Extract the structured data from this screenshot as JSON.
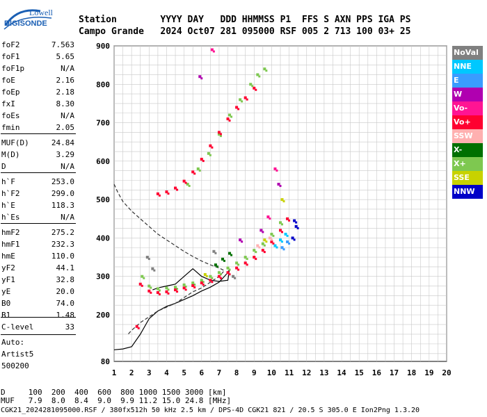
{
  "logo": {
    "line1": "Lowell",
    "line2": "DIGISONDE"
  },
  "header": {
    "line1": "Station        YYYY DAY   DDD HHMMSS P1  FFS S AXN PPS IGA PS",
    "line2": "Campo Grande   2024 Oct07 281 095000 RSF 005 2 713 100 03+ 25"
  },
  "params": [
    {
      "label": "foF2",
      "value": "7.563"
    },
    {
      "label": "foF1",
      "value": "5.65"
    },
    {
      "label": "foF1p",
      "value": "N/A"
    },
    {
      "label": "foE",
      "value": "2.16"
    },
    {
      "label": "foEp",
      "value": "2.18"
    },
    {
      "label": "fxI",
      "value": "8.30"
    },
    {
      "label": "foEs",
      "value": "N/A"
    },
    {
      "label": "fmin",
      "value": "2.05"
    },
    {
      "label": "MUF(D)",
      "value": "24.84"
    },
    {
      "label": "M(D)",
      "value": "3.29"
    },
    {
      "label": "D",
      "value": "N/A"
    },
    {
      "label": "h`F",
      "value": "253.0"
    },
    {
      "label": "h`F2",
      "value": "299.0"
    },
    {
      "label": "h`E",
      "value": "118.3"
    },
    {
      "label": "h`Es",
      "value": "N/A"
    },
    {
      "label": "hmF2",
      "value": "275.2"
    },
    {
      "label": "hmF1",
      "value": "232.3"
    },
    {
      "label": "hmE",
      "value": "110.0"
    },
    {
      "label": "yF2",
      "value": "44.1"
    },
    {
      "label": "yF1",
      "value": "32.8"
    },
    {
      "label": "yE",
      "value": "20.0"
    },
    {
      "label": "B0",
      "value": "74.0"
    },
    {
      "label": "B1",
      "value": "1.48"
    },
    {
      "label": "C-level",
      "value": "33"
    },
    {
      "label": "Auto:",
      "value": ""
    },
    {
      "label": "Artist5",
      "value": ""
    },
    {
      "label": "500200",
      "value": ""
    }
  ],
  "legend": [
    {
      "label": "NoVal",
      "color": "#808080"
    },
    {
      "label": "NNE",
      "color": "#00c8ff"
    },
    {
      "label": "E",
      "color": "#3a9cff"
    },
    {
      "label": "W",
      "color": "#b000b0"
    },
    {
      "label": "Vo-",
      "color": "#ff1493"
    },
    {
      "label": "Vo+",
      "color": "#ff0030"
    },
    {
      "label": "SSW",
      "color": "#ffb0b0"
    },
    {
      "label": "X-",
      "color": "#007000"
    },
    {
      "label": "X+",
      "color": "#7ec850"
    },
    {
      "label": "SSE",
      "color": "#c8d200"
    },
    {
      "label": "NNW",
      "color": "#0000c8"
    }
  ],
  "muf_table": {
    "line1": "D     100  200  400  600  800 1000 1500 3000 [km]",
    "line2": "MUF   7.9  8.0  8.4  9.0  9.9 11.2 15.0 24.8 [MHz]"
  },
  "footer": "CGK21_2024281095000.RSF / 380fx512h 50 kHz 2.5 km / DPS-4D CGK21 821 / 20.5 S 305.0 E Ion2Png 1.3.20",
  "chart_data": {
    "type": "scatter",
    "xlim": [
      1,
      20
    ],
    "ylim": [
      80,
      900
    ],
    "x_ticks": [
      1,
      2,
      3,
      4,
      5,
      6,
      7,
      8,
      9,
      10,
      11,
      12,
      13,
      14,
      15,
      16,
      17,
      18,
      19,
      20
    ],
    "y_ticks": [
      80,
      200,
      300,
      400,
      500,
      600,
      700,
      800,
      900
    ],
    "grid": true,
    "series": [
      {
        "name": "X+",
        "color": "#7ec850",
        "x": [
          2.6,
          3.0,
          3.5,
          4.0,
          4.5,
          5.0,
          5.5,
          6.0,
          6.5,
          7.0,
          7.5,
          8.0,
          8.5,
          9.0,
          9.5,
          10.0,
          10.5,
          5.2,
          5.8,
          6.4,
          7.0,
          7.6,
          8.2,
          8.8,
          9.2,
          9.6
        ],
        "y": [
          300,
          275,
          268,
          270,
          272,
          278,
          283,
          290,
          300,
          310,
          322,
          335,
          350,
          368,
          385,
          410,
          440,
          540,
          580,
          620,
          670,
          720,
          760,
          800,
          825,
          840
        ]
      },
      {
        "name": "Vo+",
        "color": "#ff0030",
        "x": [
          2.3,
          2.5,
          3.0,
          3.5,
          4.0,
          4.5,
          5.0,
          5.5,
          6.0,
          6.5,
          7.0,
          7.5,
          8.0,
          8.5,
          9.0,
          9.5,
          10.0,
          10.5,
          10.9,
          3.5,
          4.0,
          4.5,
          5.0,
          5.5,
          6.0,
          6.5,
          7.0,
          7.5,
          8.0,
          8.5,
          9.0
        ],
        "y": [
          170,
          280,
          262,
          258,
          260,
          265,
          270,
          276,
          283,
          290,
          300,
          310,
          322,
          335,
          350,
          368,
          390,
          420,
          450,
          515,
          520,
          530,
          548,
          572,
          605,
          640,
          675,
          710,
          740,
          765,
          790
        ]
      },
      {
        "name": "X-",
        "color": "#007000",
        "x": [
          6.8,
          7.2,
          7.6
        ],
        "y": [
          330,
          345,
          360
        ]
      },
      {
        "name": "W",
        "color": "#b000b0",
        "x": [
          5.9,
          8.2,
          9.4,
          10.4
        ],
        "y": [
          820,
          395,
          420,
          540
        ]
      },
      {
        "name": "Vo-",
        "color": "#ff1493",
        "x": [
          6.6,
          9.8,
          10.2
        ],
        "y": [
          890,
          455,
          580
        ]
      },
      {
        "name": "NNE",
        "color": "#00c8ff",
        "x": [
          10.2,
          10.5,
          10.8
        ],
        "y": [
          380,
          395,
          410
        ]
      },
      {
        "name": "E",
        "color": "#3a9cff",
        "x": [
          10.6,
          10.9
        ],
        "y": [
          375,
          390
        ]
      },
      {
        "name": "NNW",
        "color": "#0000c8",
        "x": [
          11.2,
          11.4,
          11.3
        ],
        "y": [
          400,
          430,
          445
        ]
      },
      {
        "name": "SSE",
        "color": "#c8d200",
        "x": [
          6.2,
          9.6,
          10.6
        ],
        "y": [
          305,
          395,
          500
        ]
      },
      {
        "name": "SSW",
        "color": "#ffb0b0",
        "x": [
          9.2,
          9.9
        ],
        "y": [
          380,
          400
        ]
      },
      {
        "name": "NoVal",
        "color": "#808080",
        "x": [
          2.9,
          3.2,
          6.7,
          7.8
        ],
        "y": [
          350,
          320,
          365,
          300
        ]
      }
    ],
    "lines": [
      {
        "style": "solid",
        "color": "#000",
        "x": [
          1.0,
          1.5,
          2.0,
          2.5,
          3.0,
          3.5,
          4.0,
          4.5,
          5.0,
          5.5,
          6.0,
          6.5,
          7.0,
          7.2,
          7.5,
          7.6,
          7.5,
          7.0,
          6.5,
          6.0,
          5.5,
          5.0,
          4.5,
          4.0,
          3.5,
          3.2
        ],
        "y": [
          110,
          112,
          118,
          150,
          190,
          210,
          222,
          230,
          240,
          250,
          262,
          272,
          285,
          295,
          310,
          320,
          290,
          287,
          290,
          300,
          320,
          300,
          280,
          275,
          270,
          265
        ]
      },
      {
        "style": "dashed",
        "color": "#333",
        "x": [
          1.0,
          1.2,
          1.5,
          2.0,
          2.5,
          3.0,
          3.5,
          4.0,
          4.5,
          5.0,
          5.5,
          6.0,
          6.5,
          7.0,
          7.3,
          7.0,
          6.5,
          6.0,
          5.5,
          5.0,
          4.5,
          4.0,
          3.5,
          3.0,
          2.5,
          2.0,
          1.8
        ],
        "y": [
          540,
          520,
          495,
          470,
          450,
          430,
          410,
          395,
          380,
          365,
          352,
          340,
          330,
          322,
          315,
          300,
          285,
          270,
          260,
          245,
          230,
          220,
          210,
          195,
          180,
          160,
          150
        ]
      }
    ]
  }
}
